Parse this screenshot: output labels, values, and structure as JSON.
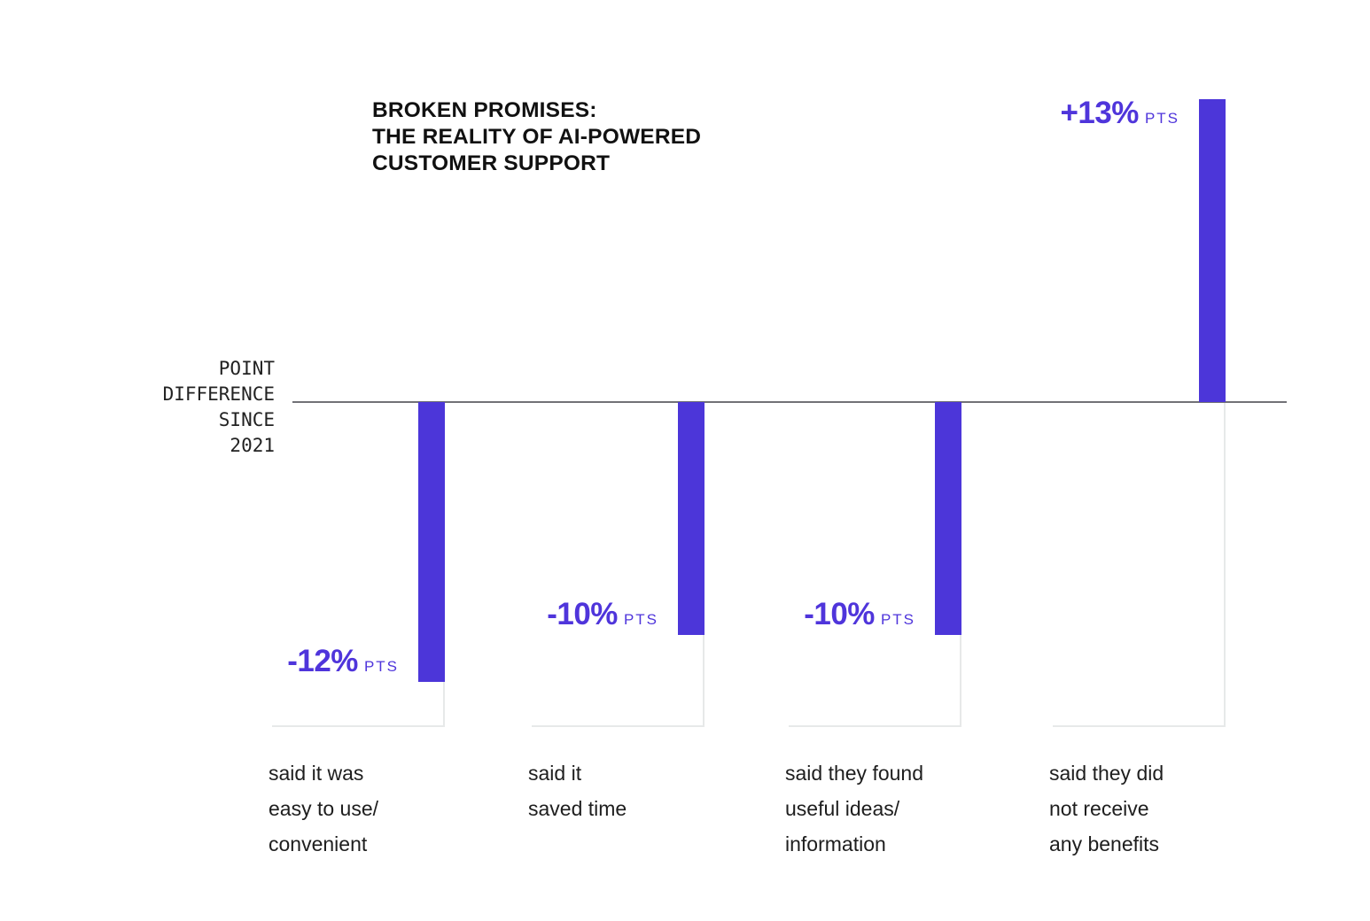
{
  "title": {
    "text": "BROKEN PROMISES:\nTHE REALITY OF AI-POWERED\nCUSTOMER SUPPORT"
  },
  "axis_label": {
    "text": "POINT\nDIFFERENCE\nSINCE\n2021"
  },
  "chart_data": {
    "type": "bar",
    "title": "BROKEN PROMISES: THE REALITY OF AI-POWERED CUSTOMER SUPPORT",
    "ylabel": "POINT DIFFERENCE SINCE 2021",
    "unit": "PTS",
    "baseline_value": 0,
    "grid": false,
    "legend": false,
    "ylim": [
      -14,
      14
    ],
    "categories": [
      "said it was easy to use/ convenient",
      "said it saved time",
      "said they found useful ideas/ information",
      "said they did not receive any benefits"
    ],
    "values": [
      -12,
      -10,
      -10,
      13
    ],
    "columns": [
      {
        "value": -12,
        "value_label": "-12%",
        "unit_label": "PTS",
        "category": "said it was\neasy to use/\nconvenient"
      },
      {
        "value": -10,
        "value_label": "-10%",
        "unit_label": "PTS",
        "category": "said it\nsaved time"
      },
      {
        "value": -10,
        "value_label": "-10%",
        "unit_label": "PTS",
        "category": "said they found\nuseful ideas/\ninformation"
      },
      {
        "value": 13,
        "value_label": "+13%",
        "unit_label": "PTS",
        "category": "said they did\nnot receive\nany benefits"
      }
    ],
    "colors": {
      "bar": "#4C36D9",
      "value_text": "#4F35DB",
      "baseline": "#717176",
      "column_outline": "#E7E9E9",
      "title_text": "#111111",
      "category_text": "#1E1E1E",
      "axis_text": "#222222",
      "background": "#FFFFFF"
    }
  }
}
